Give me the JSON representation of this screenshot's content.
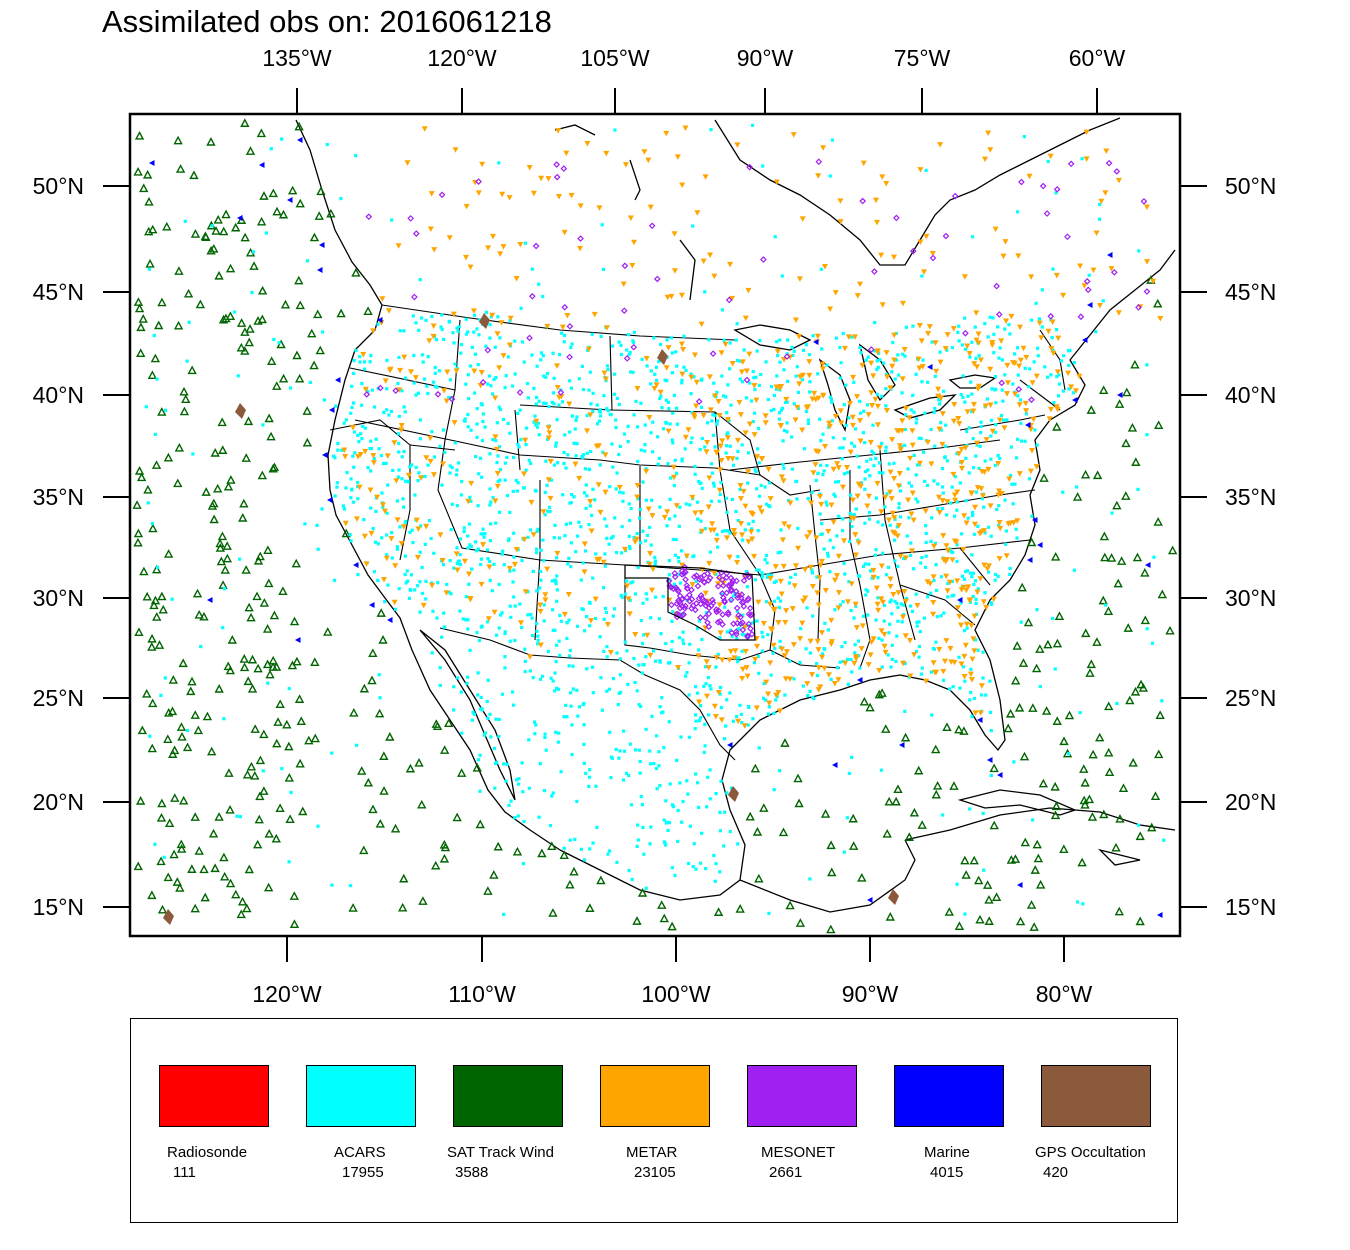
{
  "title": "Assimilated obs on: 2016061218",
  "top_lon_labels": [
    "135°W",
    "120°W",
    "105°W",
    "90°W",
    "75°W",
    "60°W"
  ],
  "bottom_lon_labels": [
    "120°W",
    "110°W",
    "100°W",
    "90°W",
    "80°W"
  ],
  "lat_labels": [
    "50°N",
    "45°N",
    "40°N",
    "35°N",
    "30°N",
    "25°N",
    "20°N",
    "15°N"
  ],
  "legend": [
    {
      "label": "Radiosonde",
      "count": "111",
      "color": "#ff0000"
    },
    {
      "label": "ACARS",
      "count": "17955",
      "color": "#00ffff"
    },
    {
      "label": "SAT Track Wind",
      "count": "3588",
      "color": "#006400"
    },
    {
      "label": "METAR",
      "count": "23105",
      "color": "#ffa500"
    },
    {
      "label": "MESONET",
      "count": "2661",
      "color": "#a020f0"
    },
    {
      "label": "Marine",
      "count": "4015",
      "color": "#0000ff"
    },
    {
      "label": "GPS Occultation",
      "count": "420",
      "color": "#8b5a3c"
    }
  ]
}
